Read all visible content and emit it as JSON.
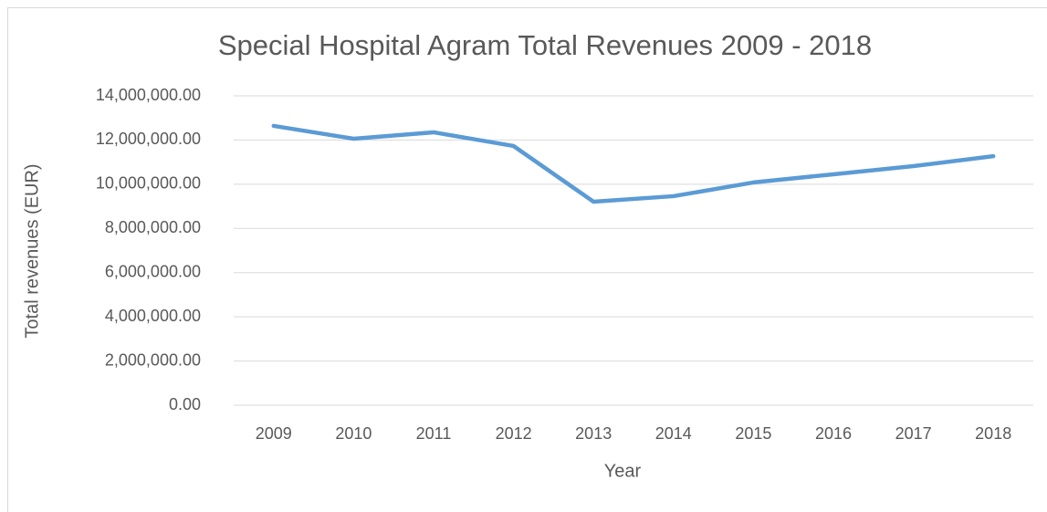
{
  "chart_data": {
    "type": "line",
    "title": "Special Hospital Agram Total Revenues 2009 - 2018",
    "x_label": "Year",
    "y_label": "Total revenues (EUR)",
    "categories": [
      "2009",
      "2010",
      "2011",
      "2012",
      "2013",
      "2014",
      "2015",
      "2016",
      "2017",
      "2018"
    ],
    "series": [
      {
        "name": "Total revenues",
        "color": "#5b9bd5",
        "values": [
          12640000,
          12060000,
          12350000,
          11730000,
          9210000,
          9460000,
          10080000,
          10450000,
          10820000,
          11270000
        ]
      }
    ],
    "ylim": [
      0,
      14000000
    ],
    "yticks": [
      {
        "value": 0,
        "label": "0.00"
      },
      {
        "value": 2000000,
        "label": "2,000,000.00"
      },
      {
        "value": 4000000,
        "label": "4,000,000.00"
      },
      {
        "value": 6000000,
        "label": "6,000,000.00"
      },
      {
        "value": 8000000,
        "label": "8,000,000.00"
      },
      {
        "value": 10000000,
        "label": "10,000,000.00"
      },
      {
        "value": 12000000,
        "label": "12,000,000.00"
      },
      {
        "value": 14000000,
        "label": "14,000,000.00"
      }
    ],
    "grid": true
  }
}
